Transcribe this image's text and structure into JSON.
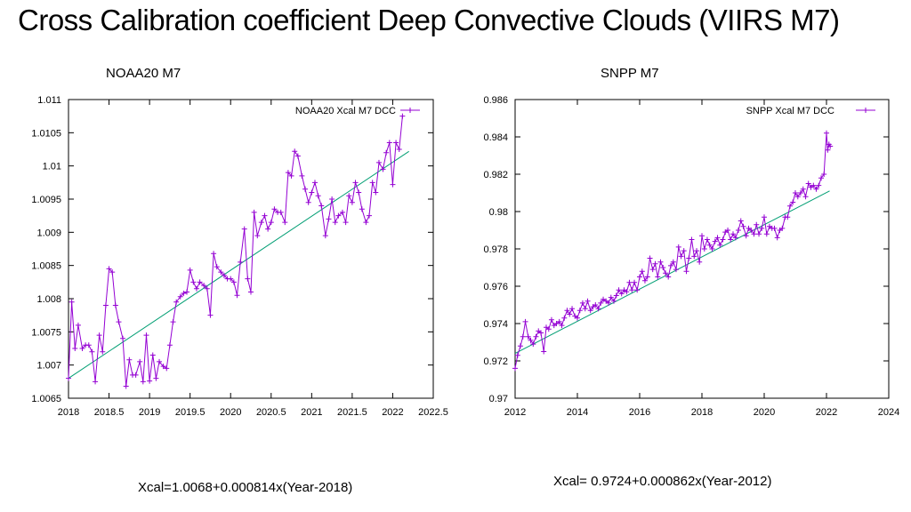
{
  "slide": {
    "title": "Cross Calibration coefficient Deep Convective Clouds (VIIRS M7)",
    "left_label": "NOAA20 M7",
    "right_label": "SNPP M7",
    "left_equation": "Xcal=1.0068+0.000814x(Year-2018)",
    "right_equation": "Xcal= 0.9724+0.000862x(Year-2012)"
  },
  "colors": {
    "data_line": "#9400d3",
    "fit_line": "#009e73",
    "axis": "#000000"
  },
  "chart_data": [
    {
      "type": "line",
      "title": "",
      "xlabel": "",
      "ylabel": "",
      "xlim": [
        2018,
        2022.5
      ],
      "ylim": [
        1.0065,
        1.011
      ],
      "xticks": [
        2018,
        2018.5,
        2019,
        2019.5,
        2020,
        2020.5,
        2021,
        2021.5,
        2022,
        2022.5
      ],
      "xtick_labels": [
        "2018",
        "2018.5",
        "2019",
        "2019.5",
        "2020",
        "2020.5",
        "2021",
        "2021.5",
        "2022",
        "2022.5"
      ],
      "yticks": [
        1.0065,
        1.007,
        1.0075,
        1.008,
        1.0085,
        1.009,
        1.0095,
        1.01,
        1.0105,
        1.011
      ],
      "ytick_labels": [
        "1.0065",
        "1.007",
        "1.0075",
        "1.008",
        "1.0085",
        "1.009",
        "1.0095",
        "1.01",
        "1.0105",
        "1.011"
      ],
      "legend": {
        "label": "NOAA20 Xcal M7 DCC",
        "position": "top-right"
      },
      "series": [
        {
          "name": "NOAA20 Xcal M7 DCC",
          "x": [
            2018.0,
            2018.04,
            2018.08,
            2018.12,
            2018.17,
            2018.21,
            2018.25,
            2018.29,
            2018.33,
            2018.38,
            2018.42,
            2018.46,
            2018.5,
            2018.54,
            2018.58,
            2018.62,
            2018.67,
            2018.71,
            2018.75,
            2018.79,
            2018.83,
            2018.88,
            2018.92,
            2018.96,
            2019.0,
            2019.04,
            2019.08,
            2019.12,
            2019.17,
            2019.21,
            2019.25,
            2019.29,
            2019.33,
            2019.38,
            2019.42,
            2019.46,
            2019.5,
            2019.54,
            2019.58,
            2019.62,
            2019.67,
            2019.71,
            2019.75,
            2019.79,
            2019.83,
            2019.88,
            2019.92,
            2019.96,
            2020.0,
            2020.04,
            2020.08,
            2020.12,
            2020.17,
            2020.21,
            2020.25,
            2020.29,
            2020.33,
            2020.38,
            2020.42,
            2020.46,
            2020.5,
            2020.54,
            2020.58,
            2020.62,
            2020.67,
            2020.71,
            2020.75,
            2020.79,
            2020.83,
            2020.88,
            2020.92,
            2020.96,
            2021.0,
            2021.04,
            2021.08,
            2021.12,
            2021.17,
            2021.21,
            2021.25,
            2021.29,
            2021.33,
            2021.38,
            2021.42,
            2021.46,
            2021.5,
            2021.54,
            2021.58,
            2021.62,
            2021.67,
            2021.71,
            2021.75,
            2021.79,
            2021.83,
            2021.88,
            2021.92,
            2021.96,
            2022.0,
            2022.04,
            2022.08,
            2022.12
          ],
          "y": [
            1.0068,
            1.00795,
            1.00725,
            1.0076,
            1.00725,
            1.0073,
            1.0073,
            1.0072,
            1.00675,
            1.00745,
            1.0072,
            1.0079,
            1.00845,
            1.0084,
            1.0079,
            1.00765,
            1.0074,
            1.00668,
            1.00708,
            1.00685,
            1.00685,
            1.00705,
            1.00675,
            1.00745,
            1.00676,
            1.00715,
            1.0068,
            1.00705,
            1.00698,
            1.00695,
            1.0073,
            1.00765,
            1.00795,
            1.00803,
            1.00808,
            1.0081,
            1.00843,
            1.00825,
            1.00815,
            1.00825,
            1.0082,
            1.00815,
            1.00775,
            1.00868,
            1.00848,
            1.0084,
            1.00835,
            1.0083,
            1.0083,
            1.00825,
            1.00805,
            1.00855,
            1.00905,
            1.0083,
            1.0081,
            1.0093,
            1.00895,
            1.00915,
            1.00925,
            1.00905,
            1.00915,
            1.00935,
            1.0093,
            1.0093,
            1.00915,
            1.0099,
            1.00985,
            1.01022,
            1.01015,
            1.00985,
            1.00965,
            1.00945,
            1.0096,
            1.00975,
            1.00955,
            1.0094,
            1.00895,
            1.0092,
            1.0095,
            1.00915,
            1.00925,
            1.0093,
            1.00915,
            1.00955,
            1.00945,
            1.00975,
            1.0096,
            1.00935,
            1.00915,
            1.00925,
            1.00975,
            1.0096,
            1.01005,
            1.00995,
            1.0102,
            1.01035,
            1.00972,
            1.01035,
            1.01025,
            1.01075
          ]
        }
      ],
      "fit": {
        "intercept": 1.0068,
        "slope": 0.000814,
        "x0": 2018,
        "x_range": [
          2018,
          2022.2
        ]
      }
    },
    {
      "type": "line",
      "title": "",
      "xlabel": "",
      "ylabel": "",
      "xlim": [
        2012,
        2024
      ],
      "ylim": [
        0.97,
        0.986
      ],
      "xticks": [
        2012,
        2014,
        2016,
        2018,
        2020,
        2022,
        2024
      ],
      "xtick_labels": [
        "2012",
        "2014",
        "2016",
        "2018",
        "2020",
        "2022",
        "2024"
      ],
      "yticks": [
        0.97,
        0.972,
        0.974,
        0.976,
        0.978,
        0.98,
        0.982,
        0.984,
        0.986
      ],
      "ytick_labels": [
        "0.97",
        "0.972",
        "0.974",
        "0.976",
        "0.978",
        "0.98",
        "0.982",
        "0.984",
        "0.986"
      ],
      "legend": {
        "label": "SNPP Xcal M7 DCC",
        "position": "top-right"
      },
      "series": [
        {
          "name": "SNPP Xcal M7 DCC",
          "x": [
            2012.0,
            2012.08,
            2012.17,
            2012.25,
            2012.33,
            2012.42,
            2012.5,
            2012.58,
            2012.67,
            2012.75,
            2012.83,
            2012.92,
            2013.0,
            2013.08,
            2013.17,
            2013.25,
            2013.33,
            2013.42,
            2013.5,
            2013.58,
            2013.67,
            2013.75,
            2013.83,
            2013.92,
            2014.0,
            2014.08,
            2014.17,
            2014.25,
            2014.33,
            2014.42,
            2014.5,
            2014.58,
            2014.67,
            2014.75,
            2014.83,
            2014.92,
            2015.0,
            2015.08,
            2015.17,
            2015.25,
            2015.33,
            2015.42,
            2015.5,
            2015.58,
            2015.67,
            2015.75,
            2015.83,
            2015.92,
            2016.0,
            2016.08,
            2016.17,
            2016.25,
            2016.33,
            2016.42,
            2016.5,
            2016.58,
            2016.67,
            2016.75,
            2016.83,
            2016.92,
            2017.0,
            2017.08,
            2017.17,
            2017.25,
            2017.33,
            2017.42,
            2017.5,
            2017.58,
            2017.67,
            2017.75,
            2017.83,
            2017.92,
            2018.0,
            2018.08,
            2018.17,
            2018.25,
            2018.33,
            2018.42,
            2018.5,
            2018.58,
            2018.67,
            2018.75,
            2018.83,
            2018.92,
            2019.0,
            2019.08,
            2019.17,
            2019.25,
            2019.33,
            2019.42,
            2019.5,
            2019.58,
            2019.67,
            2019.75,
            2019.83,
            2019.92,
            2020.0,
            2020.08,
            2020.17,
            2020.25,
            2020.33,
            2020.42,
            2020.5,
            2020.58,
            2020.67,
            2020.75,
            2020.83,
            2020.92,
            2021.0,
            2021.08,
            2021.17,
            2021.25,
            2021.33,
            2021.42,
            2021.5,
            2021.58,
            2021.67,
            2021.75,
            2021.83,
            2021.92,
            2022.0,
            2022.04,
            2022.08,
            2022.12
          ],
          "y": [
            0.9716,
            0.9723,
            0.9728,
            0.9733,
            0.9741,
            0.9733,
            0.9731,
            0.9729,
            0.9733,
            0.9736,
            0.9735,
            0.9725,
            0.9738,
            0.9737,
            0.9742,
            0.9739,
            0.974,
            0.9741,
            0.9739,
            0.9743,
            0.9747,
            0.9745,
            0.9748,
            0.9744,
            0.9743,
            0.9747,
            0.9751,
            0.9748,
            0.9752,
            0.9747,
            0.9749,
            0.975,
            0.9748,
            0.9751,
            0.9753,
            0.9752,
            0.9751,
            0.9754,
            0.9752,
            0.9755,
            0.9758,
            0.9756,
            0.9758,
            0.9757,
            0.9762,
            0.9758,
            0.9762,
            0.9758,
            0.9765,
            0.9768,
            0.9763,
            0.9765,
            0.9775,
            0.9769,
            0.9772,
            0.9765,
            0.9773,
            0.977,
            0.9767,
            0.9765,
            0.9771,
            0.9773,
            0.9769,
            0.9781,
            0.9776,
            0.9779,
            0.9768,
            0.9775,
            0.9785,
            0.9776,
            0.9779,
            0.9773,
            0.9787,
            0.978,
            0.9785,
            0.9782,
            0.978,
            0.9784,
            0.9786,
            0.9782,
            0.9785,
            0.9789,
            0.979,
            0.9785,
            0.9788,
            0.9786,
            0.979,
            0.9795,
            0.9792,
            0.9787,
            0.9791,
            0.979,
            0.9788,
            0.9793,
            0.9788,
            0.9791,
            0.9797,
            0.9788,
            0.9792,
            0.9791,
            0.9791,
            0.9786,
            0.979,
            0.9791,
            0.9797,
            0.9797,
            0.9803,
            0.9805,
            0.981,
            0.9808,
            0.981,
            0.9812,
            0.9808,
            0.9815,
            0.9813,
            0.9814,
            0.9812,
            0.9814,
            0.9818,
            0.982,
            0.9842,
            0.9833,
            0.9836,
            0.9835
          ]
        }
      ],
      "fit": {
        "intercept": 0.9724,
        "slope": 0.000862,
        "x0": 2012,
        "x_range": [
          2012,
          2022.1
        ]
      }
    }
  ]
}
